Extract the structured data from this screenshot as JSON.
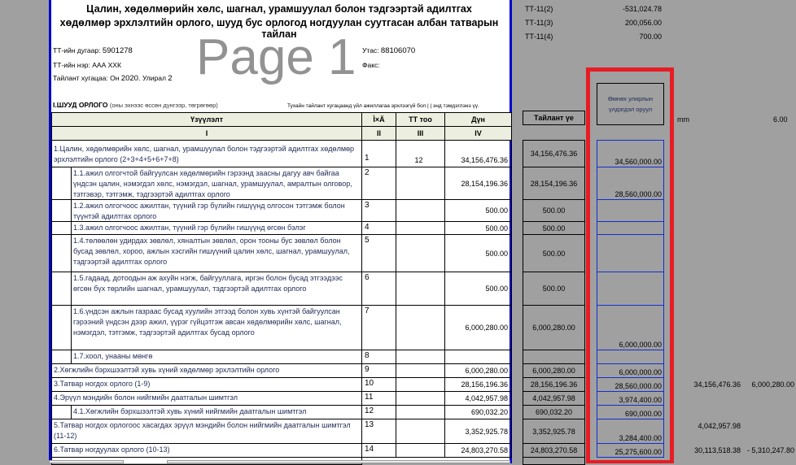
{
  "report": {
    "title_line1": "Цалин, хөдөлмөрийн хөлс, шагнал, урамшуулал болон тэдгээртэй адилтгах",
    "title_line2": "хөдөлмөр эрхлэлтийн орлого, шууд бус орлогод ногдуулан суутгасан албан татварын тайлан",
    "tt_number_label": "ТТ-ийн дугаар:",
    "tt_number": "5901278",
    "tt_name_label": "ТТ-ийн нэр:",
    "tt_name": "ААА ХХК",
    "period_label": "Тайлант хугацаа: Он",
    "period_year": "2020.",
    "period_q_label": "Улирал",
    "period_q": "2",
    "phone_label": "Утас:",
    "phone": "88106070",
    "fax_label": "Факс:",
    "section_title": "I.ШУУД ОРЛОГО",
    "section_note": "(оны эхнээс өссөн дүнгээр, төгрөгөөр)",
    "inactive_note": "Тухайн тайлант хугацаанд үйл ажиллагаа эрхлээгүй бол |    | энд тэмдэглэнэ үү.",
    "watermark": "Page 1"
  },
  "table": {
    "headers": [
      "Үзүүлэлт",
      "Ì×Ä",
      "ТТ тоо",
      "Дүн"
    ],
    "roman": [
      "I",
      "II",
      "III",
      "IV"
    ],
    "rows": [
      {
        "label": "1.Цалин, хөдөлмөрийн хөлс, шагнал, урамшуулал болон тэдгээртэй адилтгах хөдөлмөр эрхлэлтийн орлого (2+3+4+5+6+7+8)",
        "no": "1",
        "tt": "12",
        "amount": "34,156,476.36",
        "report": "34,156,476.36",
        "prev": "34,560,000.00"
      },
      {
        "label": "1.1.ажил олгогчтой байгуулсан хөдөлмөрийн гэрээнд заасны дагуу авч байгаа үндсэн цалин, нэмэгдэл хөлс, нэмэгдэл, шагнал, урамшуулал, амралтын олговор, тэтгэвэр, тэтгэмж, тэдгээртэй адилтгах орлого",
        "no": "2",
        "tt": "",
        "amount": "28,154,196.36",
        "report": "28,154,196.36",
        "prev": "28,560,000.00",
        "sub": true
      },
      {
        "label": "1.2.ажил олгогчоос ажилтан, түүний гэр бүлийн гишүүнд олгосон тэтгэмж болон түүнтэй адилтгах орлого",
        "no": "3",
        "tt": "",
        "amount": "500.00",
        "report": "500.00",
        "prev": "",
        "sub": true
      },
      {
        "label": "1.3.ажил олгогчоос ажилтан, түүний гэр бүлийн гишүүнд өгсөн бэлэг",
        "no": "4",
        "tt": "",
        "amount": "500.00",
        "report": "500.00",
        "prev": "",
        "sub": true
      },
      {
        "label": "1.4.төлөөлөн удирдах зөвлөл, хяналтын зөвлөл, орон тооны бус зөвлөл болон бусад зөвлөл, хороо, ажлын хэсгийн гишүүний цалин хөлс, шагнал, урамшуулал, тэдгээртэй адилтгах орлого",
        "no": "5",
        "tt": "",
        "amount": "500.00",
        "report": "500.00",
        "prev": "",
        "sub": true
      },
      {
        "label": "1.5.гадаад, дотоодын аж ахуйн нэгж, байгууллага, иргэн болон бусад этгээдээс өгсөн бүх төрлийн шагнал, урамшуулал, тэдгээртэй адилтгах орлого",
        "no": "6",
        "tt": "",
        "amount": "500.00",
        "report": "500.00",
        "prev": "",
        "sub": true
      },
      {
        "label": "1.6.үндсэн ажлын газраас бусад хуулийн этгээд болон хувь хүнтэй байгуулсан гэрээний үндсэн дээр ажил, үүрэг гүйцэтгэж авсан хөдөлмөрийн хөлс, шагнал, нэмэгдэл, тэтгэмж, тэдгээртэй адилтгах бусад орлого",
        "no": "7",
        "tt": "",
        "amount": "6,000,280.00",
        "report": "6,000,280.00",
        "prev": "6,000,000.00",
        "sub": true
      },
      {
        "label": "1.7.хоол, унааны мөнгө",
        "no": "8",
        "tt": "",
        "amount": "",
        "report": "",
        "prev": "",
        "sub": true
      },
      {
        "label": "2.Хөгжлийн бэрхшээлтэй хувь хүний хөдөлмөр эрхлэлтийн орлого",
        "no": "9",
        "tt": "",
        "amount": "6,000,280.00",
        "report": "6,000,280.00",
        "prev": "6,000,000.00"
      },
      {
        "label": "3.Татвар ногдох орлого (1-9)",
        "no": "10",
        "tt": "",
        "amount": "28,156,196.36",
        "report": "28,156,196.36",
        "prev": "28,560,000.00",
        "extra1": "34,156,476.36",
        "extra2": "6,000,280.00"
      },
      {
        "label": "4.Эрүүл мэндийн болон нийгмийн даатгалын шимтгэл",
        "no": "11",
        "tt": "",
        "amount": "4,042,957.98",
        "report": "4,042,957.98",
        "prev": "3,974,400.00"
      },
      {
        "label": "4.1.Хөгжлийн бэрхшээлтэй хувь хүний нийгмийн даатгалын шимтгэл",
        "no": "12",
        "tt": "",
        "amount": "690,032.20",
        "report": "690,032.20",
        "prev": "690,000.00",
        "sub": true
      },
      {
        "label": "5.Татвар ногдох орлогоос хасагдах эрүүл мэндийн болон нийгмийн даатгалын шимтгэл (11-12)",
        "no": "13",
        "tt": "",
        "amount": "3,352,925.78",
        "report": "3,352,925.78",
        "prev": "3,284,400.00",
        "extra1": "4,042,957.98"
      },
      {
        "label": "6.Татвар ногдуулах орлого (10-13)",
        "no": "14",
        "tt": "",
        "amount": "24,803,270.58",
        "report": "24,803,270.58",
        "prev": "25,275,600.00",
        "extra1": "30,113,518.38",
        "extra2": "- 5,310,247.80"
      }
    ]
  },
  "side": {
    "tt_rows": [
      {
        "label": "ТТ-11(2)",
        "value": "-531,024.78"
      },
      {
        "label": "ТТ-11(3)",
        "value": "200,056.00"
      },
      {
        "label": "ТТ-11(4)",
        "value": "700.00"
      }
    ],
    "report_period_header": "Тайлант үе",
    "prev_header": "Өмнөх улирлын үлдэгдэл оруул",
    "mm_label": "mm",
    "mm_value": "6.00",
    "highlight_color": "#e81c24"
  }
}
